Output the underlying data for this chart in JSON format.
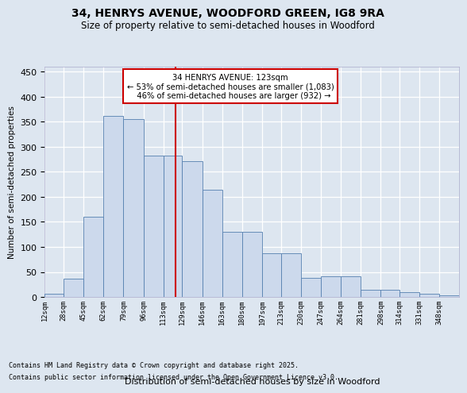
{
  "title1": "34, HENRYS AVENUE, WOODFORD GREEN, IG8 9RA",
  "title2": "Size of property relative to semi-detached houses in Woodford",
  "xlabel": "Distribution of semi-detached houses by size in Woodford",
  "ylabel": "Number of semi-detached properties",
  "bin_labels": [
    "12sqm",
    "28sqm",
    "45sqm",
    "62sqm",
    "79sqm",
    "96sqm",
    "113sqm",
    "129sqm",
    "146sqm",
    "163sqm",
    "180sqm",
    "197sqm",
    "213sqm",
    "230sqm",
    "247sqm",
    "264sqm",
    "281sqm",
    "298sqm",
    "314sqm",
    "331sqm",
    "348sqm"
  ],
  "bin_values": [
    7,
    37,
    160,
    362,
    355,
    282,
    282,
    272,
    215,
    130,
    130,
    87,
    87,
    38,
    42,
    42,
    15,
    15,
    10,
    6,
    4
  ],
  "bin_edges": [
    12,
    28,
    45,
    62,
    79,
    96,
    113,
    129,
    146,
    163,
    180,
    197,
    213,
    230,
    247,
    264,
    281,
    298,
    314,
    331,
    348,
    365
  ],
  "bar_color": "#ccd9ec",
  "bar_edge_color": "#5580b0",
  "vline_color": "#cc0000",
  "vline_xval": 123,
  "annotation_text": "34 HENRYS AVENUE: 123sqm\n← 53% of semi-detached houses are smaller (1,083)\n   46% of semi-detached houses are larger (932) →",
  "footnote1": "Contains HM Land Registry data © Crown copyright and database right 2025.",
  "footnote2": "Contains public sector information licensed under the Open Government Licence v3.0.",
  "bg_color": "#dde6f0",
  "ylim": [
    0,
    460
  ],
  "yticks": [
    0,
    50,
    100,
    150,
    200,
    250,
    300,
    350,
    400,
    450
  ]
}
